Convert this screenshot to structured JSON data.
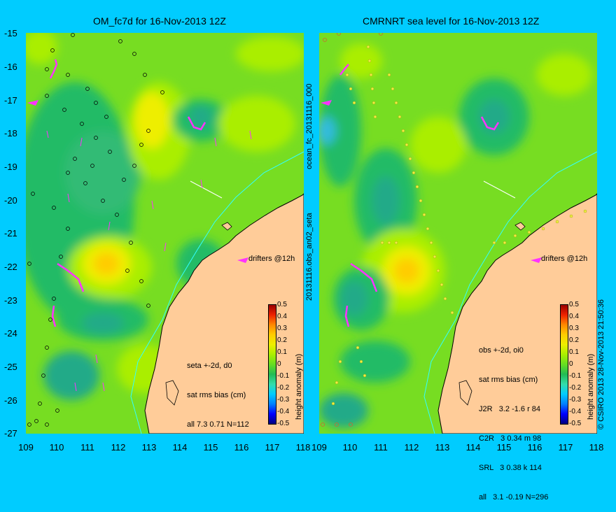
{
  "panels": [
    {
      "title": "OM_fc7d for 16-Nov-2013 12Z",
      "stats_lines": [
        "seta +-2d, d0",
        "sat rms bias (cm)",
        "all 7.3 0.71 N=112"
      ],
      "drifters_label": "drifters @12h",
      "side_label": "ocean_fc_20131116_000"
    },
    {
      "title": "CMRNRT sea level  for 16-Nov-2013 12Z",
      "stats_lines": [
        "obs +-2d, oi0",
        "sat rms bias (cm)",
        "J2R   3.2 -1.6 r 84",
        "C2R   3 0.34 m 98",
        "SRL   3 0.38 k 114",
        "all   3.1 -0.19 N=296"
      ],
      "drifters_label": "drifters @12h",
      "side_label": "20131116.obs_an02_seta"
    }
  ],
  "axes": {
    "y_ticks": [
      "-15",
      "-16",
      "-17",
      "-18",
      "-19",
      "-20",
      "-21",
      "-22",
      "-23",
      "-24",
      "-25",
      "-26",
      "-27"
    ],
    "x_ticks": [
      "109",
      "110",
      "111",
      "112",
      "113",
      "114",
      "115",
      "116",
      "117",
      "118"
    ],
    "lat_range": [
      -27,
      -15
    ],
    "lon_range": [
      109,
      118
    ]
  },
  "colorbar": {
    "label": "height anomaly (m)",
    "ticks": [
      "0.5",
      "0.4",
      "0.3",
      "0.2",
      "0.1",
      "0",
      "-0.1",
      "-0.2",
      "-0.3",
      "-0.4",
      "-0.5"
    ],
    "colors": [
      "#000080",
      "#0000ff",
      "#0080ff",
      "#00ccff",
      "#33ddaa",
      "#22bb55",
      "#66dd22",
      "#aaee00",
      "#eeee00",
      "#ffcc00",
      "#ff8800",
      "#ee2200",
      "#990000"
    ]
  },
  "colors": {
    "background": "#00ccff",
    "land": "#ffcc99",
    "drifter": "#ff33ff",
    "coast_current": "#33ffff"
  },
  "copyright": "© CSIRO 2013   28-Nov-2013 21:50:36"
}
